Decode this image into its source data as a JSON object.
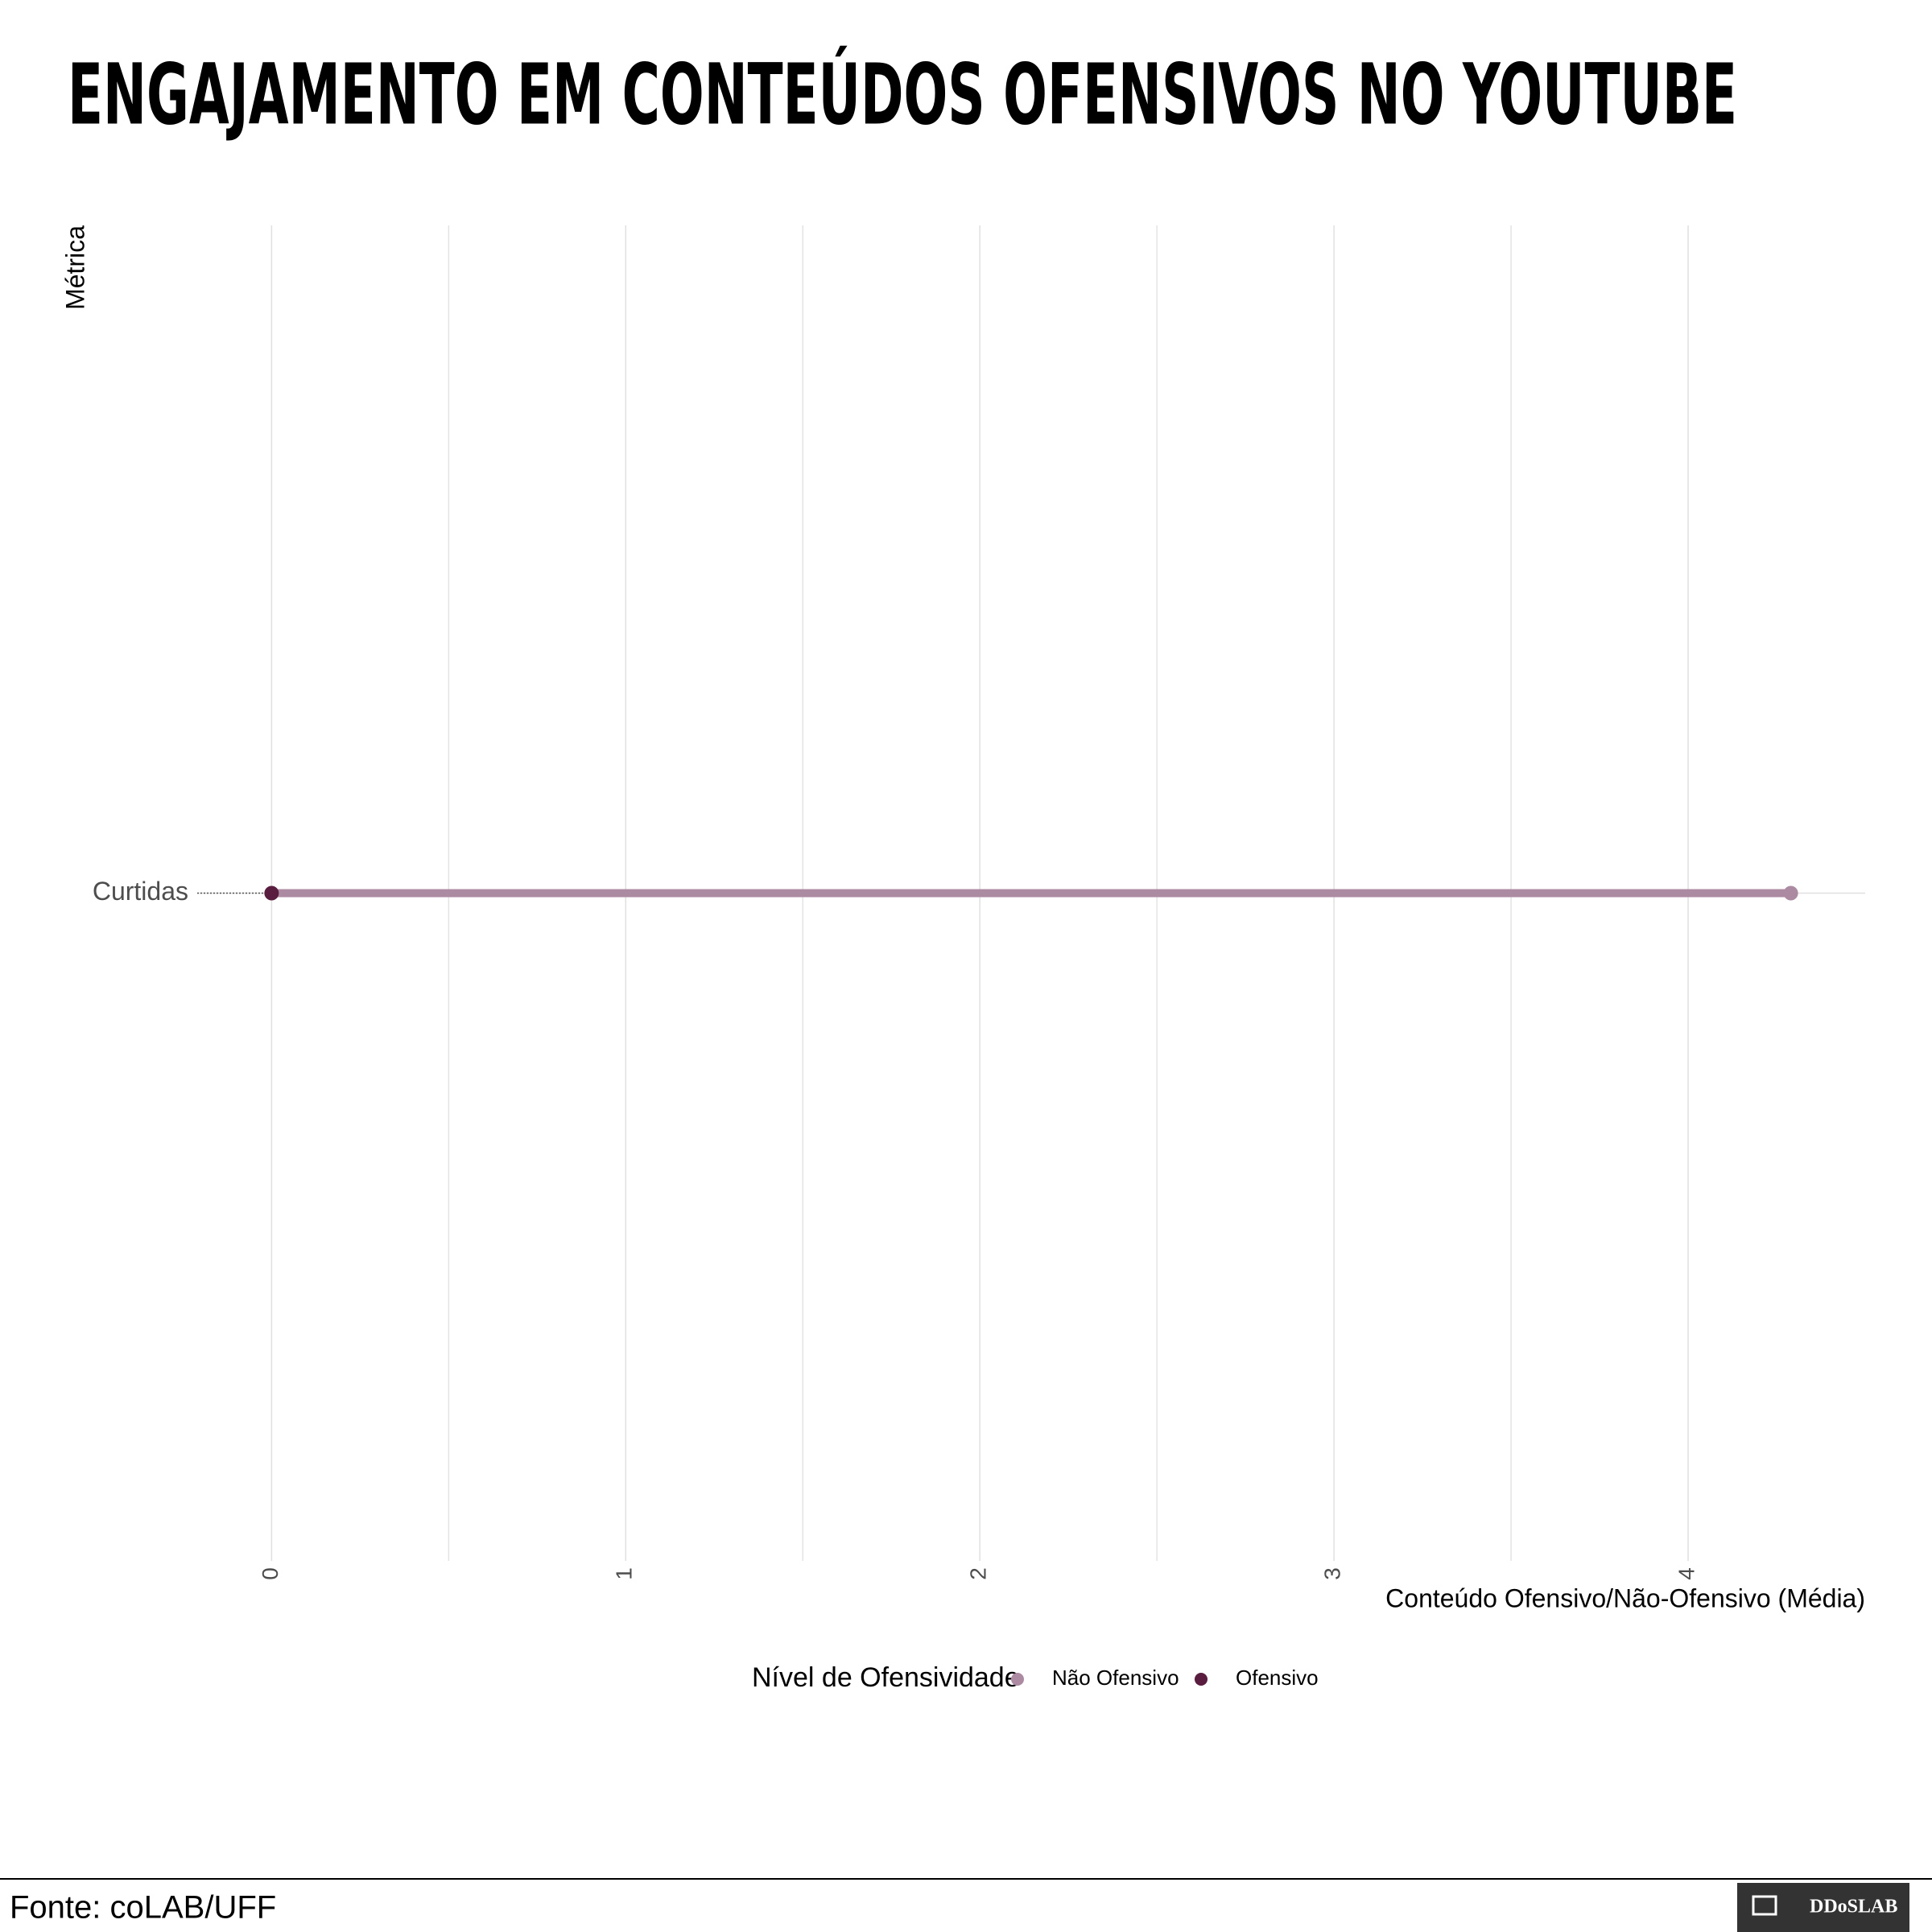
{
  "chart_data": {
    "type": "dumbbell",
    "title": "ENGAJAMENTO EM CONTEÚDOS OFENSIVOS NO YOUTUBE",
    "ylabel": "Métrica",
    "xlabel": "Conteúdo Ofensivo/Não-Ofensivo (Média)",
    "categories": [
      "Curtidas"
    ],
    "series": [
      {
        "name": "Não Ofensivo",
        "color": "#ac8ba2",
        "values": [
          4.29
        ]
      },
      {
        "name": "Ofensivo",
        "color": "#5a1d3f",
        "values": [
          0
        ]
      }
    ],
    "xlim": [
      -0.21,
      4.5
    ],
    "xticks": [
      0,
      1,
      2,
      3,
      4
    ],
    "x_minor_ticks": [
      0.5,
      1.5,
      2.5,
      3.5
    ],
    "grid": true,
    "legend_title": "Nível de Ofensividade",
    "legend_position": "bottom",
    "caption": "Fonte: coLAB/UFF",
    "logo_text": "DDoSLAB"
  }
}
